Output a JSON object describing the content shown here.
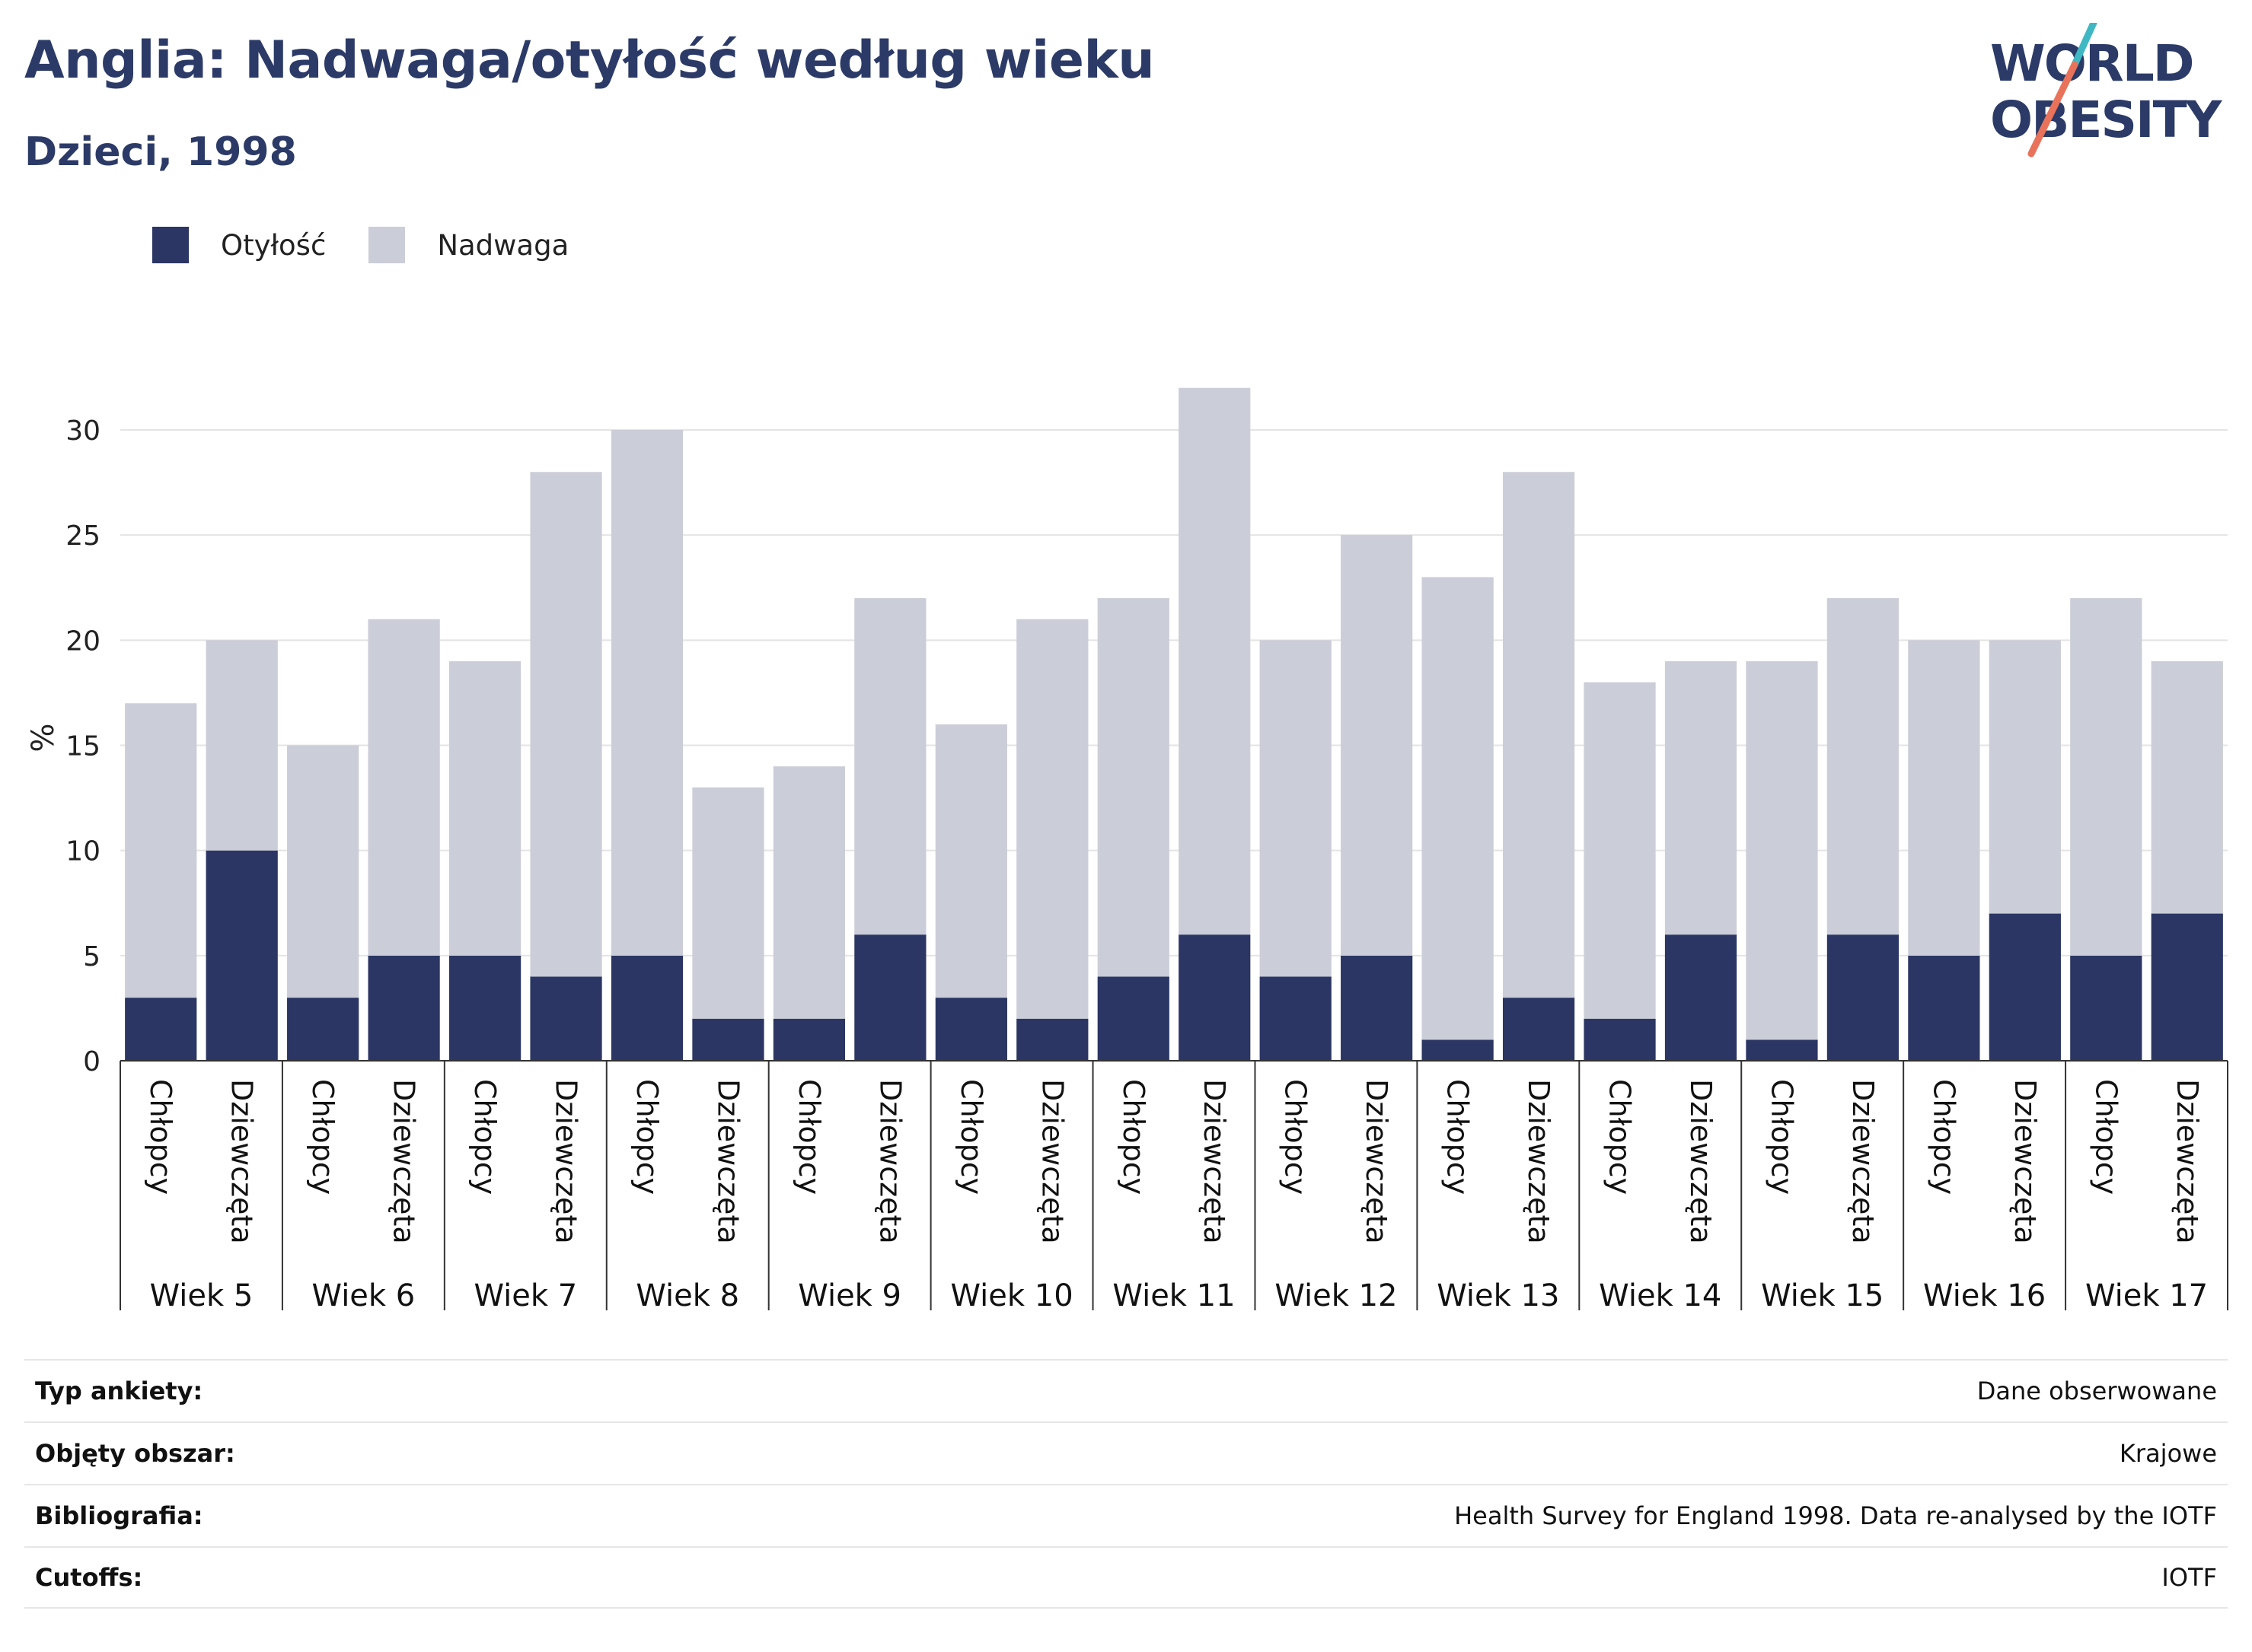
{
  "header": {
    "title": "Anglia: Nadwaga/otyłość według wieku",
    "subtitle": "Dzieci, 1998"
  },
  "logo": {
    "line1": "WORLD",
    "line2": "OBESITY",
    "accent_teal": "#3fb8c4",
    "accent_coral": "#e8735a"
  },
  "colors": {
    "obesity": "#2b3664",
    "overweight": "#cbcdd8",
    "text_dark": "#2b3a67"
  },
  "legend": [
    {
      "label": "Otyłość",
      "color": "#2b3664"
    },
    {
      "label": "Nadwaga",
      "color": "#cbcdd8"
    }
  ],
  "chart_data": {
    "type": "bar",
    "stacked": true,
    "ylabel": "%",
    "ylim": [
      0,
      33
    ],
    "yticks": [
      0,
      5,
      10,
      15,
      20,
      25,
      30
    ],
    "grid": true,
    "legend_position": "top-left",
    "groups": [
      "Wiek 5",
      "Wiek 6",
      "Wiek 7",
      "Wiek 8",
      "Wiek 9",
      "Wiek 10",
      "Wiek 11",
      "Wiek 12",
      "Wiek 13",
      "Wiek 14",
      "Wiek 15",
      "Wiek 16",
      "Wiek 17"
    ],
    "subcategories": [
      "Chłopcy",
      "Dziewczęta"
    ],
    "series": [
      {
        "name": "Otyłość",
        "values": [
          3,
          10,
          3,
          5,
          5,
          4,
          5,
          2,
          2,
          6,
          3,
          2,
          4,
          6,
          4,
          5,
          1,
          3,
          2,
          6,
          1,
          6,
          5,
          7,
          5,
          7
        ]
      },
      {
        "name": "Nadwaga",
        "values": [
          14,
          10,
          12,
          16,
          14,
          24,
          25,
          11,
          12,
          16,
          13,
          19,
          18,
          26,
          16,
          20,
          22,
          25,
          16,
          13,
          18,
          16,
          15,
          13,
          17,
          12
        ]
      }
    ],
    "totals": [
      17,
      20,
      15,
      21,
      19,
      28,
      30,
      13,
      14,
      22,
      16,
      21,
      22,
      32,
      20,
      25,
      23,
      28,
      18,
      19,
      19,
      22,
      20,
      20,
      22,
      19
    ]
  },
  "info": [
    {
      "key": "Typ ankiety:",
      "value": "Dane obserwowane"
    },
    {
      "key": "Objęty obszar:",
      "value": "Krajowe"
    },
    {
      "key": "Bibliografia:",
      "value": "Health Survey for England 1998. Data re-analysed by the IOTF"
    },
    {
      "key": "Cutoffs:",
      "value": "IOTF"
    }
  ]
}
